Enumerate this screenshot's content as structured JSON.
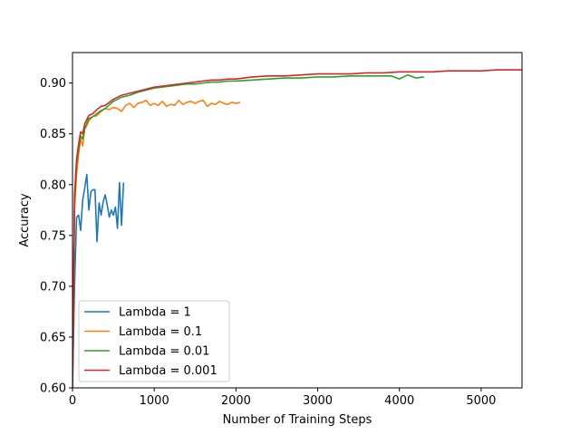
{
  "chart_data": {
    "type": "line",
    "title": "",
    "xlabel": "Number of Training Steps",
    "ylabel": "Accuracy",
    "xlim": [
      0,
      5500
    ],
    "ylim": [
      0.6,
      0.93
    ],
    "xticks": [
      0,
      1000,
      2000,
      3000,
      4000,
      5000
    ],
    "yticks": [
      0.6,
      0.65,
      0.7,
      0.75,
      0.8,
      0.85,
      0.9
    ],
    "xtick_labels": [
      "0",
      "1000",
      "2000",
      "3000",
      "4000",
      "5000"
    ],
    "ytick_labels": [
      "0.60",
      "0.65",
      "0.70",
      "0.75",
      "0.80",
      "0.85",
      "0.90"
    ],
    "legend_position": "lower-left",
    "grid": false,
    "series": [
      {
        "name": "Lambda = 1",
        "color": "#1f77b4",
        "x": [
          0,
          25,
          50,
          75,
          100,
          125,
          150,
          175,
          200,
          225,
          250,
          275,
          300,
          325,
          350,
          375,
          400,
          425,
          450,
          475,
          500,
          525,
          550,
          575,
          600,
          625
        ],
        "y": [
          0.6,
          0.7,
          0.768,
          0.77,
          0.755,
          0.785,
          0.797,
          0.81,
          0.775,
          0.793,
          0.795,
          0.795,
          0.744,
          0.782,
          0.77,
          0.783,
          0.79,
          0.78,
          0.768,
          0.775,
          0.77,
          0.778,
          0.757,
          0.802,
          0.76,
          0.802
        ]
      },
      {
        "name": "Lambda = 0.1",
        "color": "#ff7f0e",
        "x": [
          0,
          25,
          50,
          75,
          100,
          125,
          150,
          175,
          200,
          250,
          300,
          350,
          400,
          450,
          500,
          550,
          600,
          650,
          700,
          750,
          800,
          850,
          900,
          950,
          1000,
          1050,
          1100,
          1150,
          1200,
          1250,
          1300,
          1350,
          1400,
          1450,
          1500,
          1550,
          1600,
          1650,
          1700,
          1750,
          1800,
          1850,
          1900,
          1950,
          2000,
          2050
        ],
        "y": [
          0.6,
          0.775,
          0.81,
          0.83,
          0.845,
          0.838,
          0.855,
          0.858,
          0.863,
          0.867,
          0.868,
          0.872,
          0.875,
          0.874,
          0.876,
          0.875,
          0.872,
          0.878,
          0.88,
          0.876,
          0.88,
          0.881,
          0.883,
          0.878,
          0.88,
          0.878,
          0.882,
          0.877,
          0.879,
          0.878,
          0.883,
          0.879,
          0.881,
          0.882,
          0.88,
          0.882,
          0.883,
          0.877,
          0.88,
          0.879,
          0.882,
          0.88,
          0.879,
          0.881,
          0.88,
          0.881
        ]
      },
      {
        "name": "Lambda = 0.01",
        "color": "#2ca02c",
        "x": [
          0,
          25,
          50,
          75,
          100,
          125,
          150,
          175,
          200,
          250,
          300,
          350,
          400,
          500,
          600,
          700,
          800,
          900,
          1000,
          1100,
          1200,
          1300,
          1400,
          1500,
          1600,
          1700,
          1800,
          1900,
          2000,
          2200,
          2400,
          2600,
          2800,
          3000,
          3200,
          3400,
          3600,
          3800,
          3900,
          4000,
          4100,
          4200,
          4300
        ],
        "y": [
          0.6,
          0.78,
          0.82,
          0.835,
          0.848,
          0.845,
          0.855,
          0.86,
          0.865,
          0.867,
          0.87,
          0.873,
          0.875,
          0.882,
          0.886,
          0.888,
          0.891,
          0.893,
          0.895,
          0.896,
          0.897,
          0.898,
          0.899,
          0.899,
          0.9,
          0.901,
          0.901,
          0.902,
          0.902,
          0.903,
          0.904,
          0.905,
          0.905,
          0.906,
          0.906,
          0.907,
          0.907,
          0.907,
          0.907,
          0.904,
          0.908,
          0.905,
          0.906
        ]
      },
      {
        "name": "Lambda = 0.001",
        "color": "#d62728",
        "x": [
          0,
          25,
          50,
          75,
          100,
          125,
          150,
          175,
          200,
          250,
          300,
          350,
          400,
          500,
          600,
          700,
          800,
          900,
          1000,
          1100,
          1200,
          1300,
          1400,
          1500,
          1600,
          1700,
          1800,
          1900,
          2000,
          2200,
          2400,
          2600,
          2800,
          3000,
          3200,
          3400,
          3600,
          3800,
          4000,
          4200,
          4400,
          4600,
          4800,
          5000,
          5200,
          5400,
          5500
        ],
        "y": [
          0.6,
          0.79,
          0.825,
          0.84,
          0.852,
          0.85,
          0.86,
          0.864,
          0.868,
          0.87,
          0.874,
          0.877,
          0.878,
          0.884,
          0.888,
          0.89,
          0.892,
          0.894,
          0.896,
          0.897,
          0.898,
          0.899,
          0.9,
          0.901,
          0.902,
          0.903,
          0.903,
          0.904,
          0.904,
          0.906,
          0.907,
          0.907,
          0.908,
          0.909,
          0.909,
          0.909,
          0.91,
          0.91,
          0.911,
          0.911,
          0.911,
          0.912,
          0.912,
          0.912,
          0.913,
          0.913,
          0.913
        ]
      }
    ]
  }
}
